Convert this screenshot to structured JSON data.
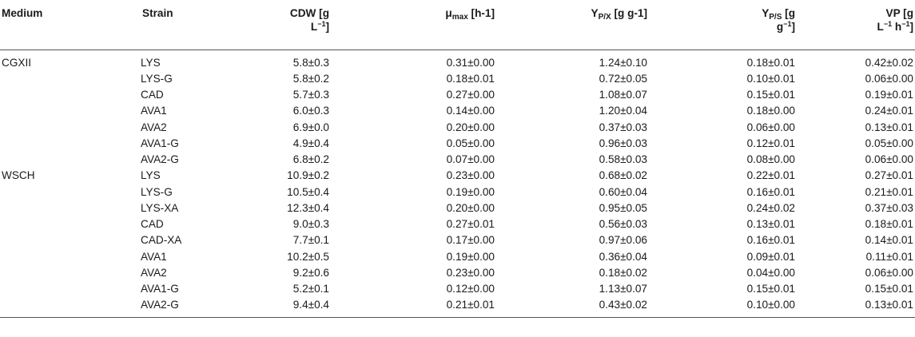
{
  "headers": {
    "medium": "Medium",
    "strain": "Strain",
    "cdw_line1": "CDW [g",
    "cdw_line2": "L",
    "cdw_sup": "−1",
    "cdw_close": "]",
    "mu_base": "μ",
    "mu_sub": "max",
    "mu_unit": " [h-1]",
    "ypx_base": "Y",
    "ypx_sub": "P/X",
    "ypx_unit": " [g g-1]",
    "yps_base": "Y",
    "yps_sub": "P/S",
    "yps_unit": " [g",
    "yps_line2": "g",
    "yps_sup": "−1",
    "yps_close": "]",
    "vp_line1": "VP [g",
    "vp_line2a": "L",
    "vp_sup1": "−1",
    "vp_mid": " h",
    "vp_sup2": "−1",
    "vp_close": "]"
  },
  "rows": [
    {
      "medium": "CGXII",
      "strain": "LYS",
      "cdw": "5.8±0.3",
      "mu": "0.31±0.00",
      "ypx": "1.24±0.10",
      "yps": "0.18±0.01",
      "vp": "0.42±0.02"
    },
    {
      "medium": "",
      "strain": "LYS-G",
      "cdw": "5.8±0.2",
      "mu": "0.18±0.01",
      "ypx": "0.72±0.05",
      "yps": "0.10±0.01",
      "vp": "0.06±0.00"
    },
    {
      "medium": "",
      "strain": "CAD",
      "cdw": "5.7±0.3",
      "mu": "0.27±0.00",
      "ypx": "1.08±0.07",
      "yps": "0.15±0.01",
      "vp": "0.19±0.01"
    },
    {
      "medium": "",
      "strain": "AVA1",
      "cdw": "6.0±0.3",
      "mu": "0.14±0.00",
      "ypx": "1.20±0.04",
      "yps": "0.18±0.00",
      "vp": "0.24±0.01"
    },
    {
      "medium": "",
      "strain": "AVA2",
      "cdw": "6.9±0.0",
      "mu": "0.20±0.00",
      "ypx": "0.37±0.03",
      "yps": "0.06±0.00",
      "vp": "0.13±0.01"
    },
    {
      "medium": "",
      "strain": "AVA1-G",
      "cdw": "4.9±0.4",
      "mu": "0.05±0.00",
      "ypx": "0.96±0.03",
      "yps": "0.12±0.01",
      "vp": "0.05±0.00"
    },
    {
      "medium": "",
      "strain": "AVA2-G",
      "cdw": "6.8±0.2",
      "mu": "0.07±0.00",
      "ypx": "0.58±0.03",
      "yps": "0.08±0.00",
      "vp": "0.06±0.00"
    },
    {
      "medium": "WSCH",
      "strain": "LYS",
      "cdw": "10.9±0.2",
      "mu": "0.23±0.00",
      "ypx": "0.68±0.02",
      "yps": "0.22±0.01",
      "vp": "0.27±0.01"
    },
    {
      "medium": "",
      "strain": "LYS-G",
      "cdw": "10.5±0.4",
      "mu": "0.19±0.00",
      "ypx": "0.60±0.04",
      "yps": "0.16±0.01",
      "vp": "0.21±0.01"
    },
    {
      "medium": "",
      "strain": "LYS-XA",
      "cdw": "12.3±0.4",
      "mu": "0.20±0.00",
      "ypx": "0.95±0.05",
      "yps": "0.24±0.02",
      "vp": "0.37±0.03"
    },
    {
      "medium": "",
      "strain": "CAD",
      "cdw": "9.0±0.3",
      "mu": "0.27±0.01",
      "ypx": "0.56±0.03",
      "yps": "0.13±0.01",
      "vp": "0.18±0.01"
    },
    {
      "medium": "",
      "strain": "CAD-XA",
      "cdw": "7.7±0.1",
      "mu": "0.17±0.00",
      "ypx": "0.97±0.06",
      "yps": "0.16±0.01",
      "vp": "0.14±0.01"
    },
    {
      "medium": "",
      "strain": "AVA1",
      "cdw": "10.2±0.5",
      "mu": "0.19±0.00",
      "ypx": "0.36±0.04",
      "yps": "0.09±0.01",
      "vp": "0.11±0.01"
    },
    {
      "medium": "",
      "strain": "AVA2",
      "cdw": "9.2±0.6",
      "mu": "0.23±0.00",
      "ypx": "0.18±0.02",
      "yps": "0.04±0.00",
      "vp": "0.06±0.00"
    },
    {
      "medium": "",
      "strain": "AVA1-G",
      "cdw": "5.2±0.1",
      "mu": "0.12±0.00",
      "ypx": "1.13±0.07",
      "yps": "0.15±0.01",
      "vp": "0.15±0.01"
    },
    {
      "medium": "",
      "strain": "AVA2-G",
      "cdw": "9.4±0.4",
      "mu": "0.21±0.01",
      "ypx": "0.43±0.02",
      "yps": "0.10±0.00",
      "vp": "0.13±0.01"
    }
  ]
}
